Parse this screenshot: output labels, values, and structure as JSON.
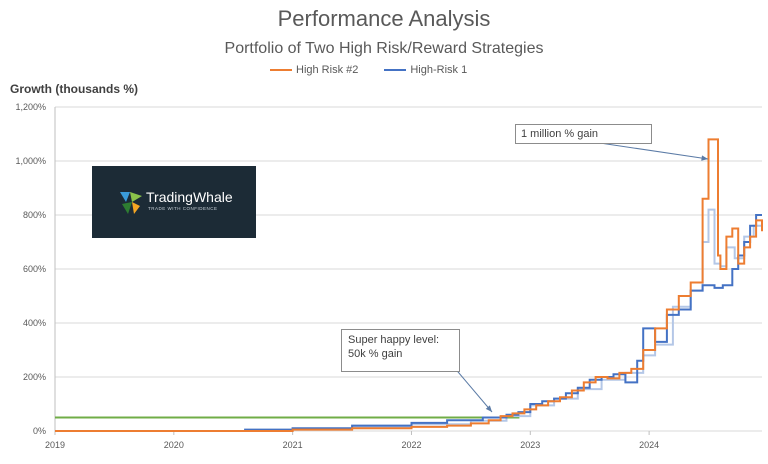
{
  "header": {
    "title": "Performance Analysis",
    "subtitle": "Portfolio of Two High Risk/Reward Strategies"
  },
  "colors": {
    "high_risk_2": "#ed7d31",
    "high_risk_1": "#4472c4",
    "combined": "#b4c7e7",
    "threshold": "#70ad47",
    "grid": "#d9d9d9"
  },
  "logo": {
    "name": "TradingWhale",
    "tagline": "TRADE WITH CONFIDENCE"
  },
  "annotations": {
    "top": "1 million % gain",
    "low_line1": "Super happy level:",
    "low_line2": "50k % gain"
  },
  "chart_data": {
    "type": "line",
    "title": "Performance Analysis",
    "subtitle": "Portfolio of Two High Risk/Reward Strategies",
    "ylabel": "Growth (thousands %)",
    "xlabel": "",
    "x_ticks": [
      "2019",
      "2020",
      "2021",
      "2022",
      "2023",
      "2024"
    ],
    "y_ticks": [
      "0%",
      "200%",
      "400%",
      "600%",
      "800%",
      "1,000%",
      "1,200%"
    ],
    "xlim": [
      2019,
      2024.95
    ],
    "ylim": [
      0,
      1200
    ],
    "grid": true,
    "legend_position": "top",
    "series": [
      {
        "name": "High Risk #2",
        "x": [
          2019,
          2020.6,
          2021,
          2021.5,
          2022,
          2022.3,
          2022.5,
          2022.65,
          2022.75,
          2022.85,
          2022.95,
          2023.05,
          2023.15,
          2023.25,
          2023.35,
          2023.45,
          2023.55,
          2023.65,
          2023.75,
          2023.85,
          2023.95,
          2024.05,
          2024.15,
          2024.25,
          2024.35,
          2024.45,
          2024.5,
          2024.53,
          2024.58,
          2024.6,
          2024.65,
          2024.7,
          2024.75,
          2024.8,
          2024.85,
          2024.9,
          2024.95
        ],
        "y": [
          0,
          0,
          5,
          10,
          15,
          20,
          28,
          40,
          55,
          65,
          80,
          95,
          110,
          125,
          150,
          180,
          200,
          195,
          215,
          230,
          300,
          380,
          450,
          500,
          550,
          860,
          1080,
          1080,
          650,
          600,
          720,
          750,
          620,
          680,
          720,
          780,
          740
        ]
      },
      {
        "name": "High-Risk 1",
        "x": [
          2019,
          2020.3,
          2020.6,
          2021,
          2021.5,
          2022,
          2022.3,
          2022.6,
          2022.8,
          2022.9,
          2023.0,
          2023.1,
          2023.2,
          2023.3,
          2023.4,
          2023.5,
          2023.6,
          2023.7,
          2023.8,
          2023.9,
          2023.95,
          2024.05,
          2024.15,
          2024.25,
          2024.35,
          2024.45,
          2024.55,
          2024.62,
          2024.7,
          2024.75,
          2024.8,
          2024.85,
          2024.9,
          2024.95
        ],
        "y": [
          0,
          0,
          5,
          10,
          20,
          30,
          40,
          50,
          60,
          70,
          100,
          110,
          120,
          140,
          160,
          190,
          200,
          210,
          180,
          260,
          380,
          330,
          430,
          450,
          520,
          540,
          530,
          540,
          600,
          650,
          700,
          760,
          800,
          800
        ]
      },
      {
        "name": "",
        "x": [
          2019,
          2020.6,
          2021,
          2021.5,
          2022,
          2022.5,
          2022.8,
          2023,
          2023.2,
          2023.4,
          2023.6,
          2023.8,
          2023.95,
          2024.05,
          2024.2,
          2024.35,
          2024.45,
          2024.5,
          2024.55,
          2024.6,
          2024.65,
          2024.72,
          2024.8,
          2024.88,
          2024.95
        ],
        "y": [
          0,
          0,
          8,
          15,
          25,
          38,
          55,
          95,
          120,
          155,
          190,
          215,
          280,
          320,
          460,
          520,
          700,
          820,
          620,
          610,
          680,
          640,
          720,
          760,
          770
        ]
      },
      {
        "name": "",
        "x": [
          2019,
          2022.9
        ],
        "y": [
          50,
          55
        ]
      }
    ]
  }
}
